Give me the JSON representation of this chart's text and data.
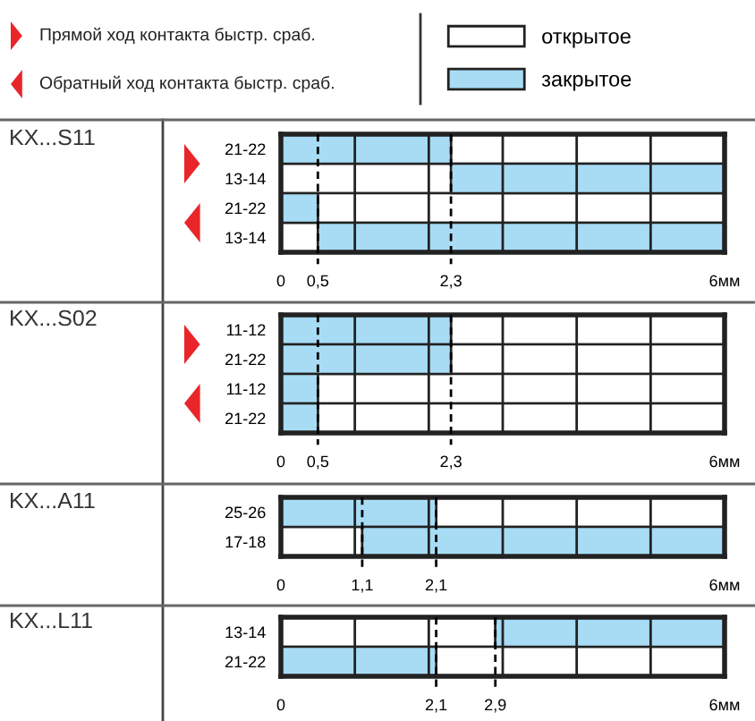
{
  "chart_data": [
    {
      "type": "bar",
      "orientation": "horizontal",
      "title": "KX...S11",
      "legend": "top right",
      "annotations": [
        "Прямой ход контакта быстр. сраб.",
        "Обратный ход контакта быстр. сраб."
      ],
      "categories": [
        "21-22",
        "13-14",
        "21-22",
        "13-14"
      ],
      "series": [
        {
          "name": "открытое",
          "color": "#ffffff",
          "base": [
            2.3,
            0,
            0.5,
            0
          ],
          "values": [
            3.7,
            2.3,
            5.5,
            0.5
          ]
        },
        {
          "name": "закрытое",
          "color": "#a8dcf5",
          "base": [
            0,
            2.3,
            0,
            0.5
          ],
          "values": [
            2.3,
            3.7,
            0.5,
            5.5
          ]
        }
      ],
      "xlim": [
        0,
        6
      ],
      "xticks": [
        0,
        {
          "value": 0.5,
          "label": "0,5"
        },
        {
          "value": 2.3,
          "label": "2,3"
        },
        {
          "value": 6,
          "label": "6мм"
        }
      ],
      "ref_lines": [
        {
          "axis": "x",
          "value": 1,
          "line_style": "solid"
        },
        {
          "axis": "x",
          "value": 2,
          "line_style": "solid"
        },
        {
          "axis": "x",
          "value": 3,
          "line_style": "solid"
        },
        {
          "axis": "x",
          "value": 4,
          "line_style": "solid"
        },
        {
          "axis": "x",
          "value": 5,
          "line_style": "solid"
        },
        {
          "axis": "x",
          "value": 0.5,
          "line_style": "dashed"
        },
        {
          "axis": "x",
          "value": 2.3,
          "line_style": "dashed"
        }
      ]
    },
    {
      "type": "bar",
      "orientation": "horizontal",
      "title": "KX...S02",
      "categories": [
        "11-12",
        "21-22",
        "11-12",
        "21-22"
      ],
      "series": [
        {
          "color": "#ffffff",
          "base": [
            2.3,
            2.3,
            0.5,
            0.5
          ],
          "values": [
            3.7,
            3.7,
            5.5,
            5.5
          ]
        },
        {
          "color": "#a8dcf5",
          "base": [
            0,
            0,
            0,
            0
          ],
          "values": [
            2.3,
            2.3,
            0.5,
            0.5
          ]
        }
      ],
      "xlim": [
        0,
        6
      ],
      "xticks": [
        0,
        {
          "value": 0.5,
          "label": "0,5"
        },
        {
          "value": 2.3,
          "label": "2,3"
        },
        {
          "value": 6,
          "label": "6мм"
        }
      ],
      "ref_lines": [
        {
          "axis": "x",
          "value": 1,
          "line_style": "solid"
        },
        {
          "axis": "x",
          "value": 2,
          "line_style": "solid"
        },
        {
          "axis": "x",
          "value": 3,
          "line_style": "solid"
        },
        {
          "axis": "x",
          "value": 4,
          "line_style": "solid"
        },
        {
          "axis": "x",
          "value": 5,
          "line_style": "solid"
        },
        {
          "axis": "x",
          "value": 0.5,
          "line_style": "dashed"
        },
        {
          "axis": "x",
          "value": 2.3,
          "line_style": "dashed"
        }
      ]
    },
    {
      "type": "bar",
      "orientation": "horizontal",
      "title": "KX...A11",
      "categories": [
        "25-26",
        "17-18"
      ],
      "series": [
        {
          "color": "#ffffff",
          "base": [
            2.1,
            0
          ],
          "values": [
            3.9,
            1.1
          ]
        },
        {
          "color": "#a8dcf5",
          "base": [
            0,
            1.1
          ],
          "values": [
            2.1,
            4.9
          ]
        }
      ],
      "xlim": [
        0,
        6
      ],
      "xticks": [
        0,
        {
          "value": 1.1,
          "label": "1,1"
        },
        {
          "value": 2.1,
          "label": "2,1"
        },
        {
          "value": 6,
          "label": "6мм"
        }
      ],
      "ref_lines": [
        {
          "axis": "x",
          "value": 1,
          "line_style": "solid"
        },
        {
          "axis": "x",
          "value": 2,
          "line_style": "solid"
        },
        {
          "axis": "x",
          "value": 3,
          "line_style": "solid"
        },
        {
          "axis": "x",
          "value": 4,
          "line_style": "solid"
        },
        {
          "axis": "x",
          "value": 5,
          "line_style": "solid"
        },
        {
          "axis": "x",
          "value": 1.1,
          "line_style": "dashed"
        },
        {
          "axis": "x",
          "value": 2.1,
          "line_style": "dashed"
        }
      ]
    },
    {
      "type": "bar",
      "orientation": "horizontal",
      "title": "KX...L11",
      "categories": [
        "13-14",
        "21-22"
      ],
      "series": [
        {
          "color": "#ffffff",
          "base": [
            0,
            2.1
          ],
          "values": [
            2.9,
            3.9
          ]
        },
        {
          "color": "#a8dcf5",
          "base": [
            2.9,
            0
          ],
          "values": [
            3.1,
            2.1
          ]
        }
      ],
      "xlim": [
        0,
        6
      ],
      "xticks": [
        0,
        {
          "value": 2.1,
          "label": "2,1"
        },
        {
          "value": 2.9,
          "label": "2,9"
        },
        {
          "value": 6,
          "label": "6мм"
        }
      ],
      "ref_lines": [
        {
          "axis": "x",
          "value": 1,
          "line_style": "solid"
        },
        {
          "axis": "x",
          "value": 2,
          "line_style": "solid"
        },
        {
          "axis": "x",
          "value": 3,
          "line_style": "solid"
        },
        {
          "axis": "x",
          "value": 4,
          "line_style": "solid"
        },
        {
          "axis": "x",
          "value": 5,
          "line_style": "solid"
        },
        {
          "axis": "x",
          "value": 2.1,
          "line_style": "dashed"
        },
        {
          "axis": "x",
          "value": 2.9,
          "line_style": "dashed"
        }
      ]
    }
  ]
}
